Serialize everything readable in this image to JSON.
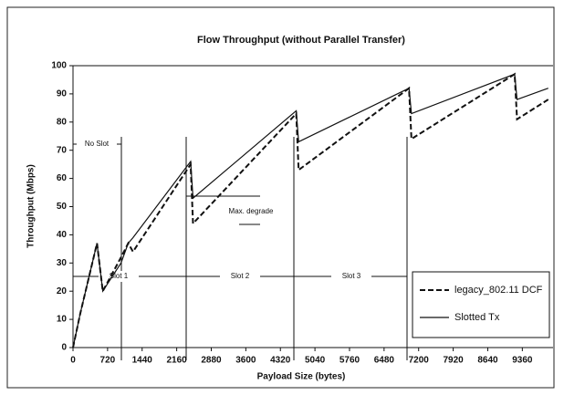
{
  "chart_data": {
    "type": "line",
    "title": "Flow Throughput (without Parallel Transfer)",
    "xlabel": "Payload Size (bytes)",
    "ylabel": "Throughput (Mbps)",
    "x": [
      0,
      150,
      500,
      620,
      1000,
      1150,
      1250,
      2450,
      2500,
      4650,
      4700,
      7000,
      7050,
      9200,
      9250,
      9900
    ],
    "series": [
      {
        "name": "legacy_802.11 DCF",
        "color": "#111111",
        "dash": true,
        "values": [
          0,
          12,
          37,
          20,
          32,
          37,
          34,
          65,
          44,
          83,
          63,
          92,
          74,
          97,
          81,
          88
        ]
      },
      {
        "name": "Slotted Tx",
        "color": "#111111",
        "dash": false,
        "values": [
          0,
          12,
          37,
          20,
          30,
          37,
          39,
          66,
          53,
          84,
          73,
          92,
          83,
          97,
          88,
          92
        ]
      }
    ],
    "xlim": [
      0,
      10000
    ],
    "ylim": [
      0,
      100
    ],
    "xticks": [
      0,
      720,
      1440,
      2160,
      2880,
      3600,
      4320,
      5040,
      5760,
      6480,
      7200,
      7920,
      8640,
      9360
    ],
    "yticks": [
      0,
      10,
      20,
      30,
      40,
      50,
      60,
      70,
      80,
      90,
      100
    ],
    "annotations": [
      "No Slot",
      "Slot 1",
      "Slot 2",
      "Slot 3",
      "Max. degrade"
    ],
    "legend": "lower right",
    "grid": false
  }
}
